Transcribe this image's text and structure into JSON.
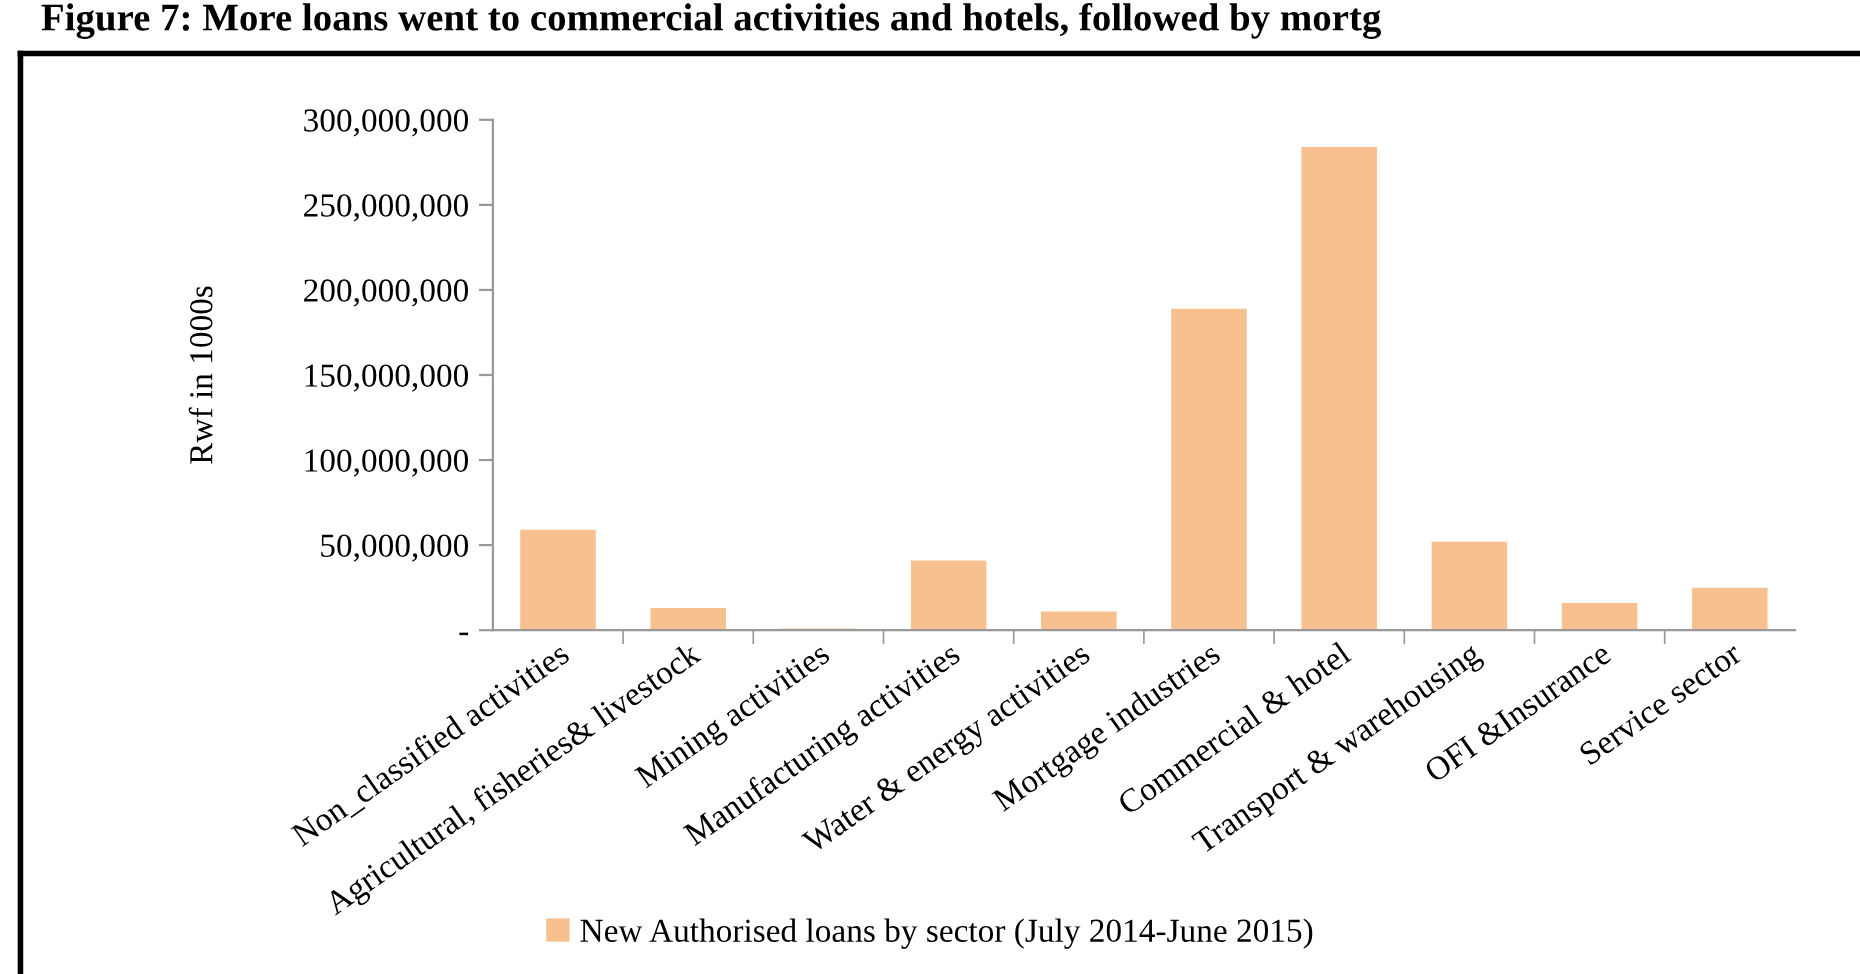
{
  "chart_data": {
    "type": "bar",
    "title": "Figure 7: More loans went to commercial activities and hotels, followed by mortg",
    "ylabel": "Rwf in 1000s",
    "categories": [
      "Non_classified activities",
      "Agricultural, fisheries& livestock",
      "Mining activities",
      "Manufacturing activities",
      "Water & energy activities",
      "Mortgage industries",
      "Commercial & hotel",
      "Transport & warehousing",
      "OFI &Insurance",
      "Service sector"
    ],
    "series": [
      {
        "name": "New Authorised loans by sector (July 2014-June 2015)",
        "color": "#f8c08f",
        "values": [
          59000000,
          13000000,
          1000000,
          41000000,
          11000000,
          189000000,
          284000000,
          52000000,
          16000000,
          25000000
        ]
      }
    ],
    "ylim": [
      0,
      300000000
    ],
    "yticks": [
      {
        "value": 0,
        "label": "-"
      },
      {
        "value": 50000000,
        "label": "50,000,000"
      },
      {
        "value": 100000000,
        "label": "100,000,000"
      },
      {
        "value": 150000000,
        "label": "150,000,000"
      },
      {
        "value": 200000000,
        "label": "200,000,000"
      },
      {
        "value": 250000000,
        "label": "250,000,000"
      },
      {
        "value": 300000000,
        "label": "300,000,000"
      }
    ],
    "grid": false,
    "legend": "bottom"
  }
}
